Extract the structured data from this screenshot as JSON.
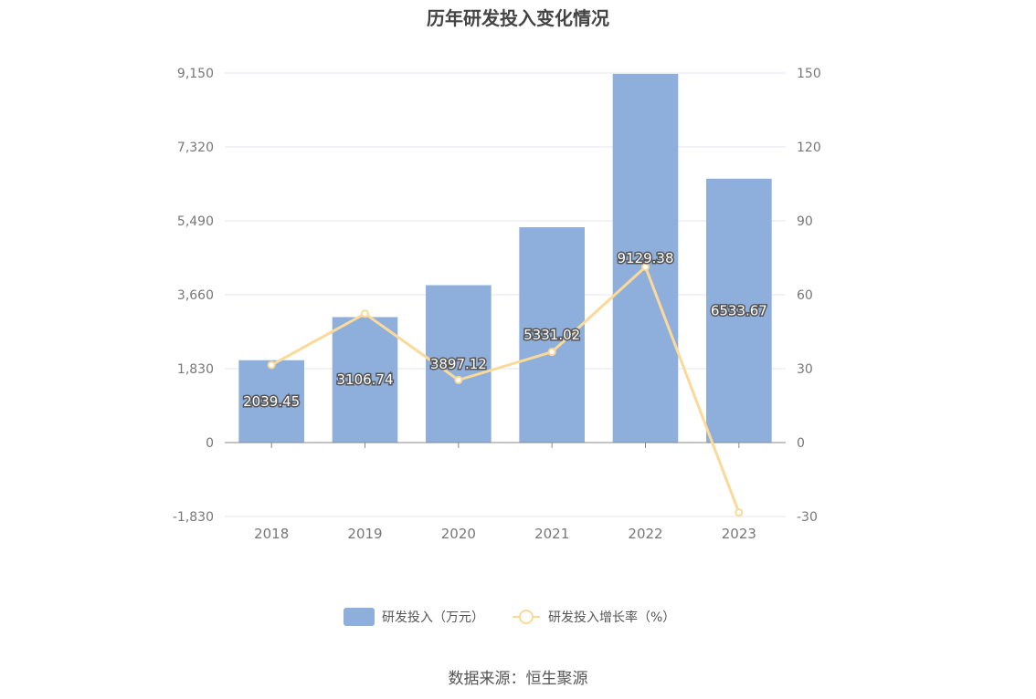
{
  "title": "历年研发投入变化情况",
  "source": "数据来源：恒生聚源",
  "colors": {
    "bar": "#8eaedb",
    "line": "#fad999",
    "axis": "#888888",
    "grid": "#e3e6f2",
    "text": "#777777"
  },
  "chart_data": {
    "type": "bar",
    "categories": [
      "2018",
      "2019",
      "2020",
      "2021",
      "2022",
      "2023"
    ],
    "series": [
      {
        "name": "研发投入（万元）",
        "type": "bar",
        "axis": "left",
        "values": [
          2039.45,
          3106.74,
          3897.12,
          5331.02,
          9129.38,
          6533.67
        ],
        "labels": [
          "2039.45",
          "3106.74",
          "3897.12",
          "5331.02",
          "9129.38",
          "6533.67"
        ]
      },
      {
        "name": "研发投入增长率（%）",
        "type": "line",
        "axis": "right",
        "values": [
          31.5,
          52.3,
          25.4,
          36.8,
          71.3,
          -28.4
        ]
      }
    ],
    "y_left": {
      "ylim": [
        -1830,
        9150
      ],
      "ticks": [
        "-1,830",
        "0",
        "1,830",
        "3,660",
        "5,490",
        "7,320",
        "9,150"
      ],
      "tick_values": [
        -1830,
        0,
        1830,
        3660,
        5490,
        7320,
        9150
      ]
    },
    "y_right": {
      "ylim": [
        -30,
        150
      ],
      "ticks": [
        "-30",
        "0",
        "30",
        "60",
        "90",
        "120",
        "150"
      ],
      "tick_values": [
        -30,
        0,
        30,
        60,
        90,
        120,
        150
      ]
    },
    "grid": true,
    "legend_position": "bottom"
  }
}
